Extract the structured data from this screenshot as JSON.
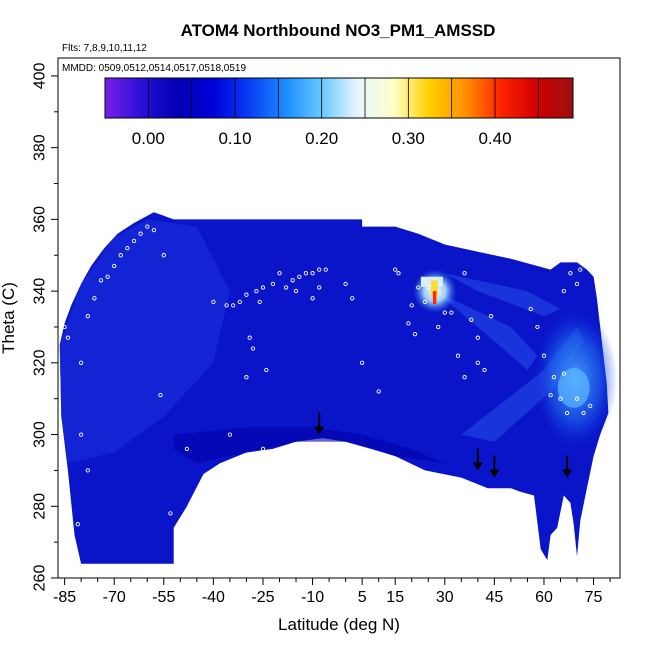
{
  "chart_data": {
    "type": "heatmap",
    "title": "ATOM4 Northbound NO3_PM1_AMSSD",
    "flights_note": "Flts: 7,8,9,10,11,12",
    "dates_note": "MMDD: 0509,0512,0514,0517,0518,0519",
    "xlabel": "Latitude (deg N)",
    "ylabel": "Theta (C)",
    "xlim": [
      -87,
      83
    ],
    "ylim": [
      260,
      405
    ],
    "x_ticks": [
      -85,
      -70,
      -55,
      -40,
      -25,
      -10,
      5,
      15,
      30,
      45,
      60,
      75
    ],
    "y_ticks": [
      260,
      280,
      300,
      320,
      340,
      360,
      380,
      400
    ],
    "colorbar": {
      "range": [
        -0.05,
        0.49
      ],
      "ticks": [
        0.0,
        0.1,
        0.2,
        0.3,
        0.4
      ],
      "tick_labels": [
        "0.00",
        "0.10",
        "0.20",
        "0.30",
        "0.40"
      ],
      "colors": [
        "#7a1fe8",
        "#2a10d8",
        "#0000b4",
        "#0000d8",
        "#0a3cf5",
        "#1a8cff",
        "#66c8ff",
        "#e6f4ff",
        "#ffffcc",
        "#ffd200",
        "#ff9100",
        "#ff2200",
        "#d00000",
        "#9a1010"
      ],
      "divisions": [
        -0.05,
        0.0,
        0.05,
        0.1,
        0.15,
        0.2,
        0.25,
        0.3,
        0.35,
        0.4,
        0.45,
        0.49
      ]
    },
    "field_description_regions": {
      "background_value": 0.02,
      "hotspot": {
        "lat": 27,
        "theta": 340,
        "max_value": 0.45
      },
      "enhanced_plume": {
        "lat_range": [
          60,
          75
        ],
        "theta_range": [
          305,
          330
        ],
        "value": 0.12
      }
    },
    "arrows_lat_theta": [
      [
        -8,
        300
      ],
      [
        40,
        290
      ],
      [
        45,
        288
      ],
      [
        67,
        288
      ]
    ]
  }
}
